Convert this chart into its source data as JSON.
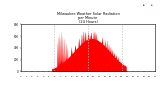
{
  "title": "Milwaukee Weather Solar Radiation\nper Minute\n(24 Hours)",
  "fill_color": "#FF0000",
  "background_color": "#FFFFFF",
  "plot_bg_color": "#FFFFFF",
  "grid_color": "#BBBBBB",
  "ylim": [
    0,
    800
  ],
  "xlim": [
    0,
    1440
  ],
  "ylabel_ticks": [
    0,
    200,
    400,
    600,
    800
  ],
  "ylabel_labels": [
    "0",
    "200",
    "400",
    "600",
    "800"
  ],
  "xlabel_ticks": [
    0,
    60,
    120,
    180,
    240,
    300,
    360,
    420,
    480,
    540,
    600,
    660,
    720,
    780,
    840,
    900,
    960,
    1020,
    1080,
    1140,
    1200,
    1260,
    1320,
    1380,
    1440
  ],
  "dashed_vlines": [
    360,
    720,
    1080
  ],
  "label_fontsize": 2.0,
  "title_fontsize": 2.5
}
